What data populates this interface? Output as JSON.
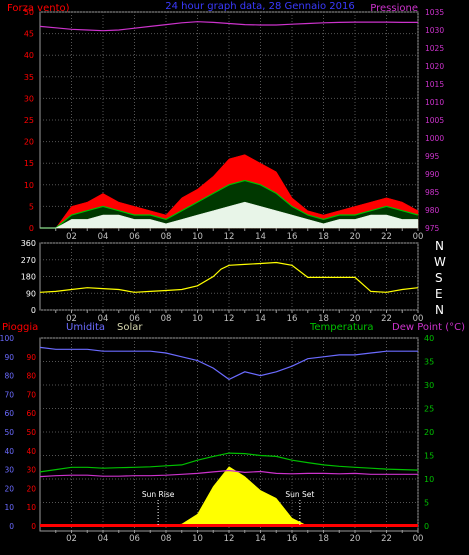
{
  "header": {
    "left_label": "Forza vento)",
    "title": "24 hour graph data, 28 Gennaio 2016",
    "right_label": "Pressione"
  },
  "direction_labels": [
    "N",
    "W",
    "S",
    "E",
    "N"
  ],
  "bottom_header": {
    "rain": "Pioggia",
    "humidity": "Umidita",
    "solar": "Solar",
    "temperature": "Temperatura",
    "dewpoint": "Dew Point (°C)"
  },
  "annotations": {
    "sunrise": "Sun Rise",
    "sunset": "Sun Set"
  },
  "colors": {
    "background": "#000000",
    "grid": "#555555",
    "axis_text": "#c0c0c0",
    "wind_speed": "#ff0000",
    "wind_gust": "#00c000",
    "wind_avg": "#ffffff",
    "pressure": "#cc33cc",
    "wind_dir": "#ffff00",
    "humidity": "#6b6bff",
    "temperature": "#00c000",
    "dewpoint": "#cc33cc",
    "solar": "#ffff00",
    "rain": "#ff0000"
  },
  "chart_data": [
    {
      "name": "wind_pressure",
      "type": "line",
      "x_ticks": [
        "02",
        "04",
        "06",
        "08",
        "10",
        "12",
        "14",
        "16",
        "18",
        "20",
        "22",
        "00"
      ],
      "ylim_left": [
        0,
        50
      ],
      "yticks_left": [
        0,
        5,
        10,
        15,
        20,
        25,
        30,
        35,
        40,
        45,
        50
      ],
      "ylim_right": [
        975,
        1035
      ],
      "yticks_right": [
        975,
        980,
        985,
        990,
        995,
        1000,
        1005,
        1010,
        1015,
        1020,
        1025,
        1030,
        1035
      ],
      "x": [
        0,
        1,
        2,
        3,
        4,
        5,
        6,
        7,
        8,
        9,
        10,
        11,
        12,
        13,
        14,
        15,
        16,
        17,
        18,
        19,
        20,
        21,
        22,
        23,
        24
      ],
      "series": [
        {
          "axis": "left",
          "values": [
            0,
            0,
            5,
            6,
            8,
            6,
            5,
            4,
            3,
            7,
            9,
            12,
            16,
            17,
            15,
            13,
            7,
            4,
            3,
            4,
            5,
            6,
            7,
            6,
            4
          ]
        },
        {
          "axis": "left",
          "values": [
            0,
            0,
            3,
            4,
            5,
            4,
            3,
            3,
            2,
            4,
            6,
            8,
            10,
            11,
            10,
            8,
            5,
            3,
            2,
            3,
            3,
            4,
            5,
            4,
            3
          ]
        },
        {
          "axis": "left",
          "values": [
            0,
            0,
            2,
            2,
            3,
            3,
            2,
            2,
            1,
            2,
            3,
            4,
            5,
            6,
            5,
            4,
            3,
            2,
            1,
            2,
            2,
            3,
            3,
            2,
            2
          ]
        },
        {
          "axis": "right",
          "values": [
            1031,
            1030.6,
            1030.2,
            1030,
            1029.8,
            1030,
            1030.5,
            1031,
            1031.5,
            1032,
            1032.3,
            1032.1,
            1031.8,
            1031.5,
            1031.4,
            1031.4,
            1031.6,
            1031.8,
            1032,
            1032.1,
            1032.2,
            1032.2,
            1032.2,
            1032.1,
            1032.1
          ]
        }
      ]
    },
    {
      "name": "wind_direction",
      "type": "line",
      "x_ticks": [
        "02",
        "04",
        "06",
        "08",
        "10",
        "12",
        "14",
        "16",
        "18",
        "20",
        "22",
        "00"
      ],
      "ylim": [
        0,
        360
      ],
      "yticks": [
        0,
        90,
        180,
        270,
        360
      ],
      "x": [
        0,
        1,
        2,
        3,
        4,
        5,
        6,
        7,
        8,
        9,
        10,
        11,
        11.5,
        12,
        13,
        14,
        15,
        16,
        17,
        18,
        19,
        20,
        21,
        22,
        23,
        24
      ],
      "series": [
        {
          "values": [
            95,
            100,
            110,
            120,
            115,
            110,
            95,
            100,
            105,
            110,
            130,
            180,
            220,
            240,
            245,
            250,
            255,
            240,
            175,
            175,
            175,
            175,
            100,
            95,
            110,
            120
          ]
        }
      ]
    },
    {
      "name": "temp_humidity_solar",
      "type": "line",
      "x_ticks": [
        "02",
        "04",
        "06",
        "08",
        "10",
        "12",
        "14",
        "16",
        "18",
        "20",
        "22",
        "00"
      ],
      "ylim_rain": [
        0,
        100
      ],
      "yticks_rain": [
        0,
        10,
        20,
        30,
        40,
        50,
        60,
        70,
        80,
        90,
        100
      ],
      "ylim_humidity": [
        0,
        100
      ],
      "yticks_humidity": [
        0,
        10,
        20,
        30,
        40,
        50,
        60,
        70,
        80,
        90
      ],
      "ylim_solar": [
        0,
        950
      ],
      "ylim_temp": [
        0,
        40
      ],
      "yticks_temp": [
        0,
        5,
        10,
        15,
        20,
        25,
        30,
        35,
        40
      ],
      "x": [
        0,
        1,
        2,
        3,
        4,
        5,
        6,
        7,
        8,
        9,
        10,
        11,
        12,
        13,
        14,
        15,
        16,
        17,
        18,
        19,
        20,
        21,
        22,
        23,
        24
      ],
      "series": [
        {
          "axis": "humidity",
          "values": [
            95,
            94,
            94,
            94,
            93,
            93,
            93,
            93,
            92,
            90,
            88,
            84,
            78,
            82,
            80,
            82,
            85,
            89,
            90,
            91,
            91,
            92,
            93,
            93,
            93
          ]
        },
        {
          "axis": "temp",
          "values": [
            11.5,
            12,
            12.5,
            12.5,
            12.3,
            12.4,
            12.5,
            12.6,
            12.8,
            13,
            14,
            14.8,
            15.5,
            15.4,
            15,
            14.8,
            14,
            13.5,
            13,
            12.7,
            12.5,
            12.3,
            12.1,
            12,
            11.9
          ]
        },
        {
          "axis": "temp",
          "values": [
            10.5,
            10.7,
            10.8,
            10.8,
            10.6,
            10.6,
            10.7,
            10.7,
            10.8,
            11,
            11.2,
            11.5,
            11.8,
            11.4,
            11.6,
            11.2,
            11.1,
            11.2,
            11.2,
            11.1,
            11.2,
            11,
            11,
            11,
            11
          ]
        },
        {
          "axis": "solar",
          "values": [
            0,
            0,
            0,
            0,
            0,
            0,
            0,
            0,
            0,
            10,
            60,
            200,
            300,
            250,
            180,
            140,
            40,
            0,
            0,
            0,
            0,
            0,
            0,
            0,
            0
          ]
        },
        {
          "axis": "rain",
          "values": [
            0,
            0,
            0,
            0,
            0,
            0,
            0,
            0,
            0,
            0,
            0,
            0,
            0,
            0,
            0,
            0,
            0,
            0,
            0,
            0,
            0,
            0,
            0,
            0,
            0
          ]
        }
      ],
      "annotations_x": {
        "sunrise": 7.5,
        "sunset": 16.5
      }
    }
  ]
}
